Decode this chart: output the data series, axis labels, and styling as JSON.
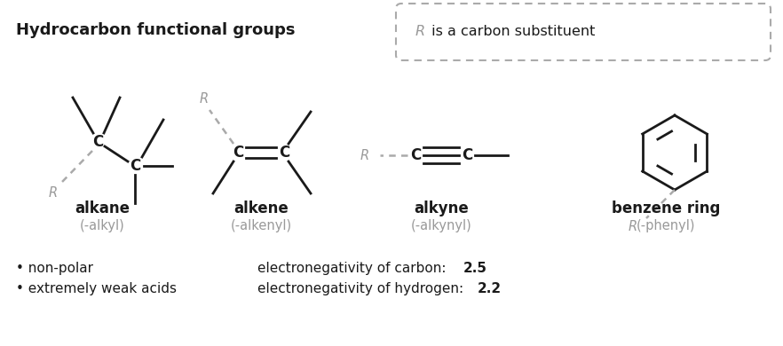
{
  "title": "Hydrocarbon functional groups",
  "bg_color": "#ffffff",
  "dark_color": "#1a1a1a",
  "gray_color": "#999999",
  "dashed_color": "#aaaaaa",
  "bullet_points": [
    "non-polar",
    "extremely weak acids"
  ],
  "en_carbon_plain": "electronegativity of carbon: ",
  "en_carbon_val": "2.5",
  "en_hydrogen_plain": "electronegativity of hydrogen: ",
  "en_hydrogen_val": "2.2",
  "r_box_text_gray": "R",
  "r_box_text_dark": " is a carbon substituent"
}
